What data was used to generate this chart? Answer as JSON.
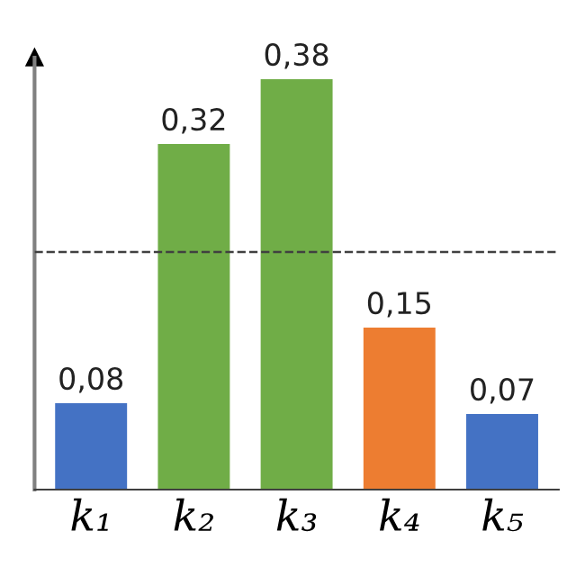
{
  "chart_data": {
    "type": "bar",
    "categories": [
      "k₁",
      "k₂",
      "k₃",
      "k₄",
      "k₅"
    ],
    "values": [
      0.08,
      0.32,
      0.38,
      0.15,
      0.07
    ],
    "colors": [
      "#4472c4",
      "#70ad47",
      "#70ad47",
      "#ed7d31",
      "#4472c4"
    ],
    "value_labels": [
      "0,08",
      "0,32",
      "0,38",
      "0,15",
      "0,07"
    ],
    "ylim": [
      0,
      0.4
    ],
    "tick_labels": "x",
    "ref_lines": [
      {
        "axis": "y",
        "value": 0.22,
        "color": "#404040",
        "line_style": "dashed"
      }
    ],
    "grid": false
  }
}
